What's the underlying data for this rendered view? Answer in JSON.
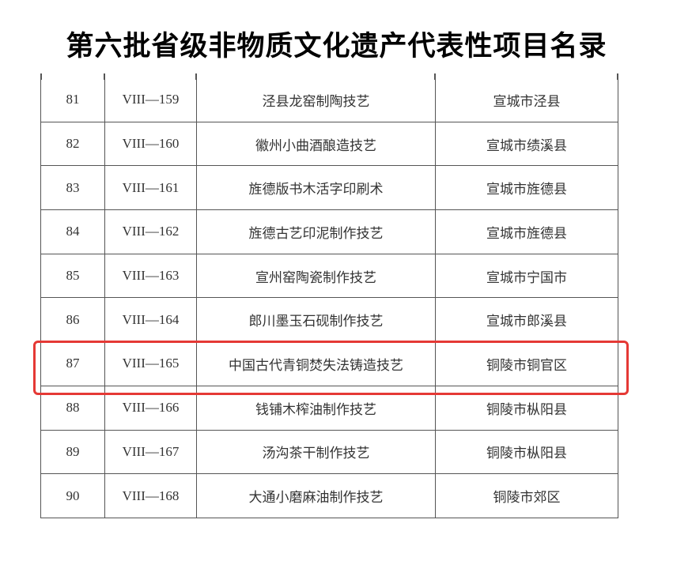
{
  "title": "第六批省级非物质文化遗产代表性项目名录",
  "rows": [
    {
      "no": "81",
      "code": "VIII—159",
      "name": "泾县龙窑制陶技艺",
      "region": "宣城市泾县"
    },
    {
      "no": "82",
      "code": "VIII—160",
      "name": "徽州小曲酒酿造技艺",
      "region": "宣城市绩溪县"
    },
    {
      "no": "83",
      "code": "VIII—161",
      "name": "旌德版书木活字印刷术",
      "region": "宣城市旌德县"
    },
    {
      "no": "84",
      "code": "VIII—162",
      "name": "旌德古艺印泥制作技艺",
      "region": "宣城市旌德县"
    },
    {
      "no": "85",
      "code": "VIII—163",
      "name": "宣州窑陶瓷制作技艺",
      "region": "宣城市宁国市"
    },
    {
      "no": "86",
      "code": "VIII—164",
      "name": "郎川墨玉石砚制作技艺",
      "region": "宣城市郎溪县"
    },
    {
      "no": "87",
      "code": "VIII—165",
      "name": "中国古代青铜焚失法铸造技艺",
      "region": "铜陵市铜官区"
    },
    {
      "no": "88",
      "code": "VIII—166",
      "name": "钱铺木榨油制作技艺",
      "region": "铜陵市枞阳县"
    },
    {
      "no": "89",
      "code": "VIII—167",
      "name": "汤沟茶干制作技艺",
      "region": "铜陵市枞阳县"
    },
    {
      "no": "90",
      "code": "VIII—168",
      "name": "大通小磨麻油制作技艺",
      "region": "铜陵市郊区"
    }
  ],
  "highlight_color": "#e53935",
  "highlighted_row": "87"
}
